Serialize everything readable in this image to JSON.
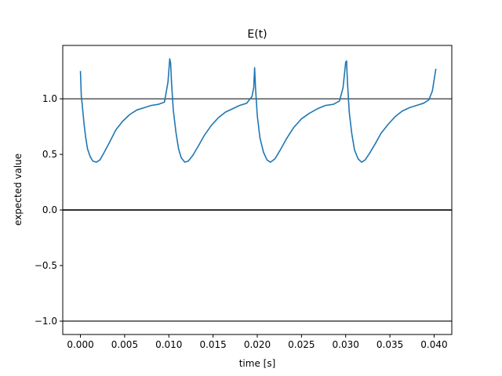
{
  "chart_data": {
    "type": "line",
    "title": "E(t)",
    "xlabel": "time [s]",
    "ylabel": "expected value",
    "xlim": [
      -0.002,
      0.042
    ],
    "ylim": [
      -1.12,
      1.48
    ],
    "xticks": [
      0.0,
      0.005,
      0.01,
      0.015,
      0.02,
      0.025,
      0.03,
      0.035,
      0.04
    ],
    "xtick_labels": [
      "0.000",
      "0.005",
      "0.010",
      "0.015",
      "0.020",
      "0.025",
      "0.030",
      "0.035",
      "0.040"
    ],
    "yticks": [
      -1.0,
      -0.5,
      0.0,
      0.5,
      1.0
    ],
    "ytick_labels": [
      "−1.0",
      "−0.5",
      "0.0",
      "0.5",
      "1.0"
    ],
    "grid": false,
    "reference_lines": [
      {
        "y": 1.0,
        "color": "#000000"
      },
      {
        "y": 0.0,
        "color": "#000000"
      },
      {
        "y": -1.0,
        "color": "#000000"
      }
    ],
    "series": [
      {
        "color": "#1f77b4",
        "x": [
          0.0,
          0.0001,
          0.0002,
          0.0004,
          0.0006,
          0.0008,
          0.0011,
          0.0014,
          0.0018,
          0.0022,
          0.0027,
          0.0033,
          0.004,
          0.0048,
          0.0056,
          0.0064,
          0.0072,
          0.008,
          0.0088,
          0.0095,
          0.0099,
          0.0101,
          0.0102,
          0.0103,
          0.0105,
          0.0108,
          0.0111,
          0.0114,
          0.0118,
          0.0122,
          0.0127,
          0.0133,
          0.014,
          0.0148,
          0.0156,
          0.0164,
          0.0172,
          0.018,
          0.0188,
          0.0191,
          0.0194,
          0.0196,
          0.0197,
          0.0198,
          0.02,
          0.0203,
          0.0207,
          0.0211,
          0.0215,
          0.022,
          0.0226,
          0.0233,
          0.0241,
          0.025,
          0.0259,
          0.0268,
          0.0277,
          0.0286,
          0.0293,
          0.0297,
          0.03,
          0.0301,
          0.0302,
          0.0304,
          0.0307,
          0.031,
          0.0314,
          0.0318,
          0.0322,
          0.0327,
          0.0333,
          0.034,
          0.0348,
          0.0356,
          0.0364,
          0.0372,
          0.038,
          0.0388,
          0.0394,
          0.0398,
          0.04,
          0.0402
        ],
        "y": [
          1.25,
          1.02,
          0.95,
          0.78,
          0.65,
          0.55,
          0.48,
          0.44,
          0.43,
          0.45,
          0.52,
          0.61,
          0.72,
          0.8,
          0.86,
          0.9,
          0.92,
          0.94,
          0.95,
          0.97,
          1.15,
          1.36,
          1.32,
          1.15,
          0.9,
          0.7,
          0.55,
          0.47,
          0.43,
          0.44,
          0.49,
          0.57,
          0.67,
          0.76,
          0.83,
          0.88,
          0.91,
          0.94,
          0.96,
          0.99,
          1.02,
          1.1,
          1.28,
          1.1,
          0.85,
          0.65,
          0.52,
          0.45,
          0.43,
          0.46,
          0.54,
          0.64,
          0.74,
          0.82,
          0.87,
          0.91,
          0.94,
          0.95,
          0.98,
          1.1,
          1.33,
          1.34,
          1.15,
          0.88,
          0.68,
          0.54,
          0.46,
          0.43,
          0.45,
          0.51,
          0.59,
          0.69,
          0.77,
          0.84,
          0.89,
          0.92,
          0.94,
          0.96,
          0.99,
          1.07,
          1.17,
          1.27
        ]
      }
    ]
  }
}
